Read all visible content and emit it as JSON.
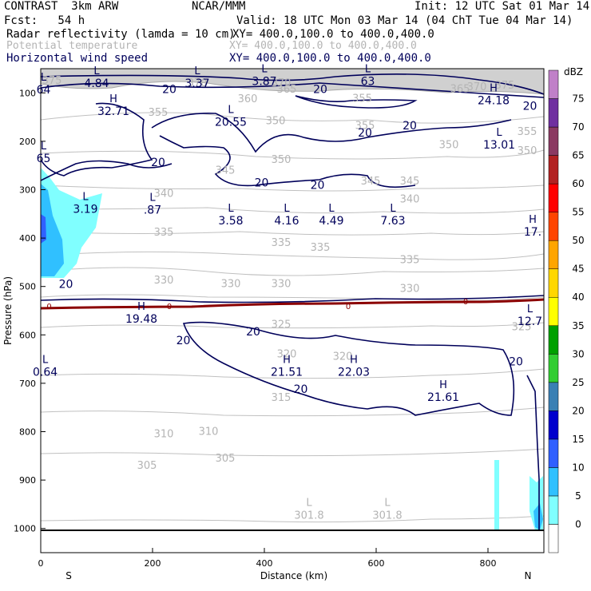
{
  "header": {
    "model": "CONTRAST  3km ARW",
    "org": "NCAR/MMM",
    "init": "Init: 12 UTC Sat 01 Mar 14",
    "fcst": "Fcst:   54 h",
    "valid": "Valid: 18 UTC Mon 03 Mar 14 (04 ChT Tue 04 Mar 14)",
    "fields": [
      {
        "name": "Radar reflectivity (lamda = 10 cm)",
        "xy": "XY= 400.0,100.0 to 400.0,400.0",
        "color": "#000000"
      },
      {
        "name": "Potential temperature",
        "xy": "XY= 400.0,100.0 to 400.0,400.0",
        "color": "#b4b4b4"
      },
      {
        "name": "Horizontal wind speed",
        "xy": "XY= 400.0,100.0 to 400.0,400.0",
        "color": "#00005a"
      }
    ]
  },
  "chart_data": {
    "type": "contour",
    "xlabel": "Distance (km)",
    "ylabel": "Pressure (hPa)",
    "xlim": [
      0,
      900
    ],
    "ylim": [
      1050,
      50
    ],
    "xticks": [
      0,
      200,
      400,
      600,
      800
    ],
    "yticks": [
      100,
      200,
      300,
      400,
      500,
      600,
      700,
      800,
      900,
      1000
    ],
    "left_end": "S",
    "right_end": "N",
    "colorbar": {
      "unit": "dBZ",
      "levels": [
        0,
        5,
        10,
        15,
        20,
        25,
        30,
        35,
        40,
        45,
        50,
        55,
        60,
        65,
        70,
        75
      ],
      "colors": [
        "#ffffff",
        "#80ffff",
        "#30c0ff",
        "#3060ff",
        "#0000cd",
        "#3a80b4",
        "#32cd32",
        "#00a000",
        "#ffff00",
        "#ffd700",
        "#ffa500",
        "#ff4500",
        "#ff0000",
        "#b22222",
        "#8b3a62",
        "#7030a0",
        "#c080c8"
      ]
    },
    "theta_labels": [
      {
        "x": 20,
        "y": 75,
        "text": "375"
      },
      {
        "x": 280,
        "y": 80,
        "text": "370"
      },
      {
        "x": 430,
        "y": 80,
        "text": "370"
      },
      {
        "x": 830,
        "y": 85,
        "text": "375"
      },
      {
        "x": 780,
        "y": 88,
        "text": "370"
      },
      {
        "x": 440,
        "y": 93,
        "text": "365"
      },
      {
        "x": 750,
        "y": 92,
        "text": "365"
      },
      {
        "x": 370,
        "y": 113,
        "text": "360"
      },
      {
        "x": 575,
        "y": 112,
        "text": "355"
      },
      {
        "x": 210,
        "y": 141,
        "text": "355"
      },
      {
        "x": 420,
        "y": 158,
        "text": "350"
      },
      {
        "x": 580,
        "y": 168,
        "text": "355"
      },
      {
        "x": 870,
        "y": 180,
        "text": "355"
      },
      {
        "x": 730,
        "y": 208,
        "text": "350"
      },
      {
        "x": 870,
        "y": 220,
        "text": "350"
      },
      {
        "x": 430,
        "y": 238,
        "text": "350"
      },
      {
        "x": 330,
        "y": 260,
        "text": "345"
      },
      {
        "x": 590,
        "y": 283,
        "text": "345"
      },
      {
        "x": 660,
        "y": 283,
        "text": "345"
      },
      {
        "x": 220,
        "y": 308,
        "text": "340"
      },
      {
        "x": 660,
        "y": 320,
        "text": "340"
      },
      {
        "x": 220,
        "y": 388,
        "text": "335"
      },
      {
        "x": 430,
        "y": 410,
        "text": "335"
      },
      {
        "x": 500,
        "y": 420,
        "text": "335"
      },
      {
        "x": 660,
        "y": 445,
        "text": "335"
      },
      {
        "x": 220,
        "y": 487,
        "text": "330"
      },
      {
        "x": 340,
        "y": 495,
        "text": "330"
      },
      {
        "x": 430,
        "y": 495,
        "text": "330"
      },
      {
        "x": 660,
        "y": 505,
        "text": "330"
      },
      {
        "x": 430,
        "y": 579,
        "text": "325"
      },
      {
        "x": 860,
        "y": 584,
        "text": "325"
      },
      {
        "x": 440,
        "y": 640,
        "text": "320"
      },
      {
        "x": 540,
        "y": 645,
        "text": "320"
      },
      {
        "x": 430,
        "y": 730,
        "text": "315"
      },
      {
        "x": 220,
        "y": 805,
        "text": "310"
      },
      {
        "x": 300,
        "y": 800,
        "text": "310"
      },
      {
        "x": 190,
        "y": 870,
        "text": "305"
      },
      {
        "x": 330,
        "y": 855,
        "text": "305"
      }
    ],
    "theta_extrema": [
      {
        "x": 480,
        "y": 960,
        "type": "L",
        "value": "301.8"
      },
      {
        "x": 620,
        "y": 960,
        "type": "L",
        "value": "301.8"
      }
    ],
    "wind_labels": [
      {
        "x": 230,
        "y": 92,
        "text": "20"
      },
      {
        "x": 500,
        "y": 92,
        "text": "20"
      },
      {
        "x": 875,
        "y": 127,
        "text": "20"
      },
      {
        "x": 660,
        "y": 167,
        "text": "20"
      },
      {
        "x": 580,
        "y": 182,
        "text": "20"
      },
      {
        "x": 210,
        "y": 243,
        "text": "20"
      },
      {
        "x": 395,
        "y": 285,
        "text": "20"
      },
      {
        "x": 495,
        "y": 290,
        "text": "20"
      },
      {
        "x": 45,
        "y": 495,
        "text": "20"
      },
      {
        "x": 380,
        "y": 593,
        "text": "20"
      },
      {
        "x": 255,
        "y": 611,
        "text": "20"
      },
      {
        "x": 465,
        "y": 712,
        "text": "20"
      },
      {
        "x": 850,
        "y": 655,
        "text": "20"
      }
    ],
    "wind_extrema": [
      {
        "x": 100,
        "y": 68,
        "type": "L",
        "value": "4.84"
      },
      {
        "x": 280,
        "y": 68,
        "type": "L",
        "value": "3.37"
      },
      {
        "x": 400,
        "y": 64,
        "type": "L",
        "value": "3.87"
      },
      {
        "x": 585,
        "y": 64,
        "type": "L",
        "value": "63"
      },
      {
        "x": 5,
        "y": 81,
        "type": "L",
        "value": "64"
      },
      {
        "x": 130,
        "y": 126,
        "type": "H",
        "value": "32.71"
      },
      {
        "x": 340,
        "y": 148,
        "type": "L",
        "value": "20.55"
      },
      {
        "x": 810,
        "y": 104,
        "type": "H",
        "value": "24.18"
      },
      {
        "x": 820,
        "y": 195,
        "type": "L",
        "value": "13.01"
      },
      {
        "x": 5,
        "y": 223,
        "type": "L",
        "value": "65"
      },
      {
        "x": 80,
        "y": 328,
        "type": "L",
        "value": "3.19"
      },
      {
        "x": 200,
        "y": 330,
        "type": "L",
        "value": ".87"
      },
      {
        "x": 340,
        "y": 352,
        "type": "L",
        "value": "3.58"
      },
      {
        "x": 440,
        "y": 352,
        "type": "L",
        "value": "4.16"
      },
      {
        "x": 520,
        "y": 352,
        "type": "L",
        "value": "4.49"
      },
      {
        "x": 630,
        "y": 352,
        "type": "L",
        "value": "7.63"
      },
      {
        "x": 880,
        "y": 375,
        "type": "H",
        "value": "17."
      },
      {
        "x": 180,
        "y": 555,
        "type": "H",
        "value": "19.48"
      },
      {
        "x": 875,
        "y": 560,
        "type": "L",
        "value": "12.7"
      },
      {
        "x": 8,
        "y": 665,
        "type": "L",
        "value": "0.64"
      },
      {
        "x": 440,
        "y": 665,
        "type": "H",
        "value": "21.51"
      },
      {
        "x": 560,
        "y": 665,
        "type": "H",
        "value": "22.03"
      },
      {
        "x": 720,
        "y": 717,
        "type": "H",
        "value": "21.61"
      }
    ],
    "freezing_labels": [
      {
        "x": 15,
        "y": 540,
        "text": "0"
      },
      {
        "x": 230,
        "y": 540,
        "text": "0"
      },
      {
        "x": 550,
        "y": 540,
        "text": "0"
      },
      {
        "x": 760,
        "y": 530,
        "text": "0"
      }
    ]
  }
}
